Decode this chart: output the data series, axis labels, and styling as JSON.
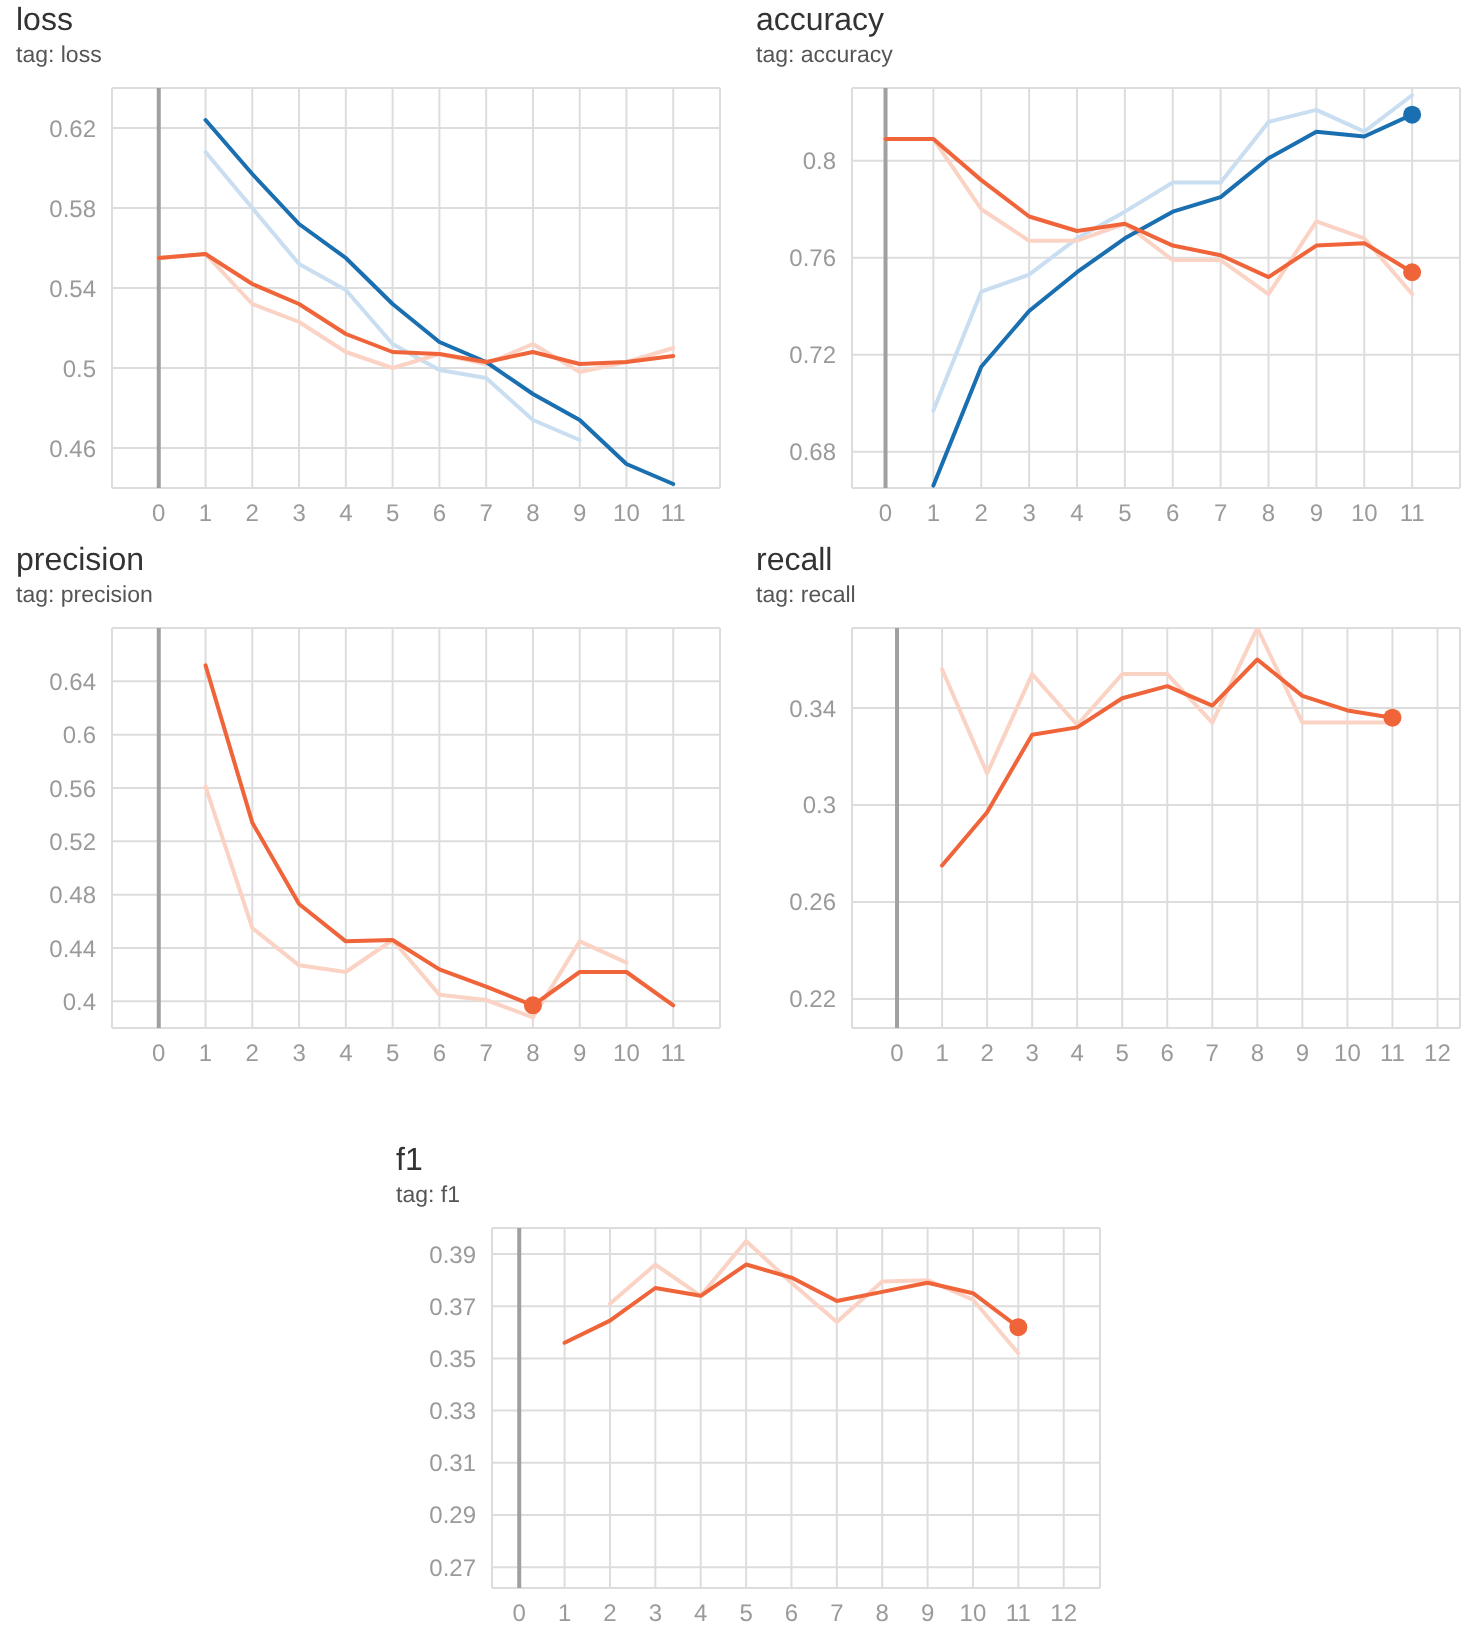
{
  "chart_data": [
    {
      "type": "line",
      "title": "loss",
      "subtitle": "tag: loss",
      "x": [
        0,
        1,
        2,
        3,
        4,
        5,
        6,
        7,
        8,
        9,
        10,
        11
      ],
      "xlim": [
        -1,
        12
      ],
      "xticks": [
        0,
        1,
        2,
        3,
        4,
        5,
        6,
        7,
        8,
        9,
        10,
        11
      ],
      "ylim": [
        0.44,
        0.64
      ],
      "yticks": [
        0.46,
        0.5,
        0.54,
        0.58,
        0.62
      ],
      "grid": true,
      "marker": "none",
      "ref_lines": [
        {
          "axis": "x",
          "value": 0,
          "color": "#a0a0a0"
        }
      ],
      "series": [
        {
          "color": "#c9def0",
          "values": [
            null,
            0.608,
            0.58,
            0.552,
            0.539,
            0.512,
            0.499,
            0.495,
            0.474,
            0.464,
            null,
            null
          ]
        },
        {
          "color": "#fbd3c5",
          "values": [
            0.555,
            0.557,
            0.532,
            0.523,
            0.508,
            0.5,
            0.507,
            0.502,
            0.512,
            0.498,
            0.503,
            0.51
          ]
        },
        {
          "color": "#1a6fb0",
          "values": [
            null,
            0.624,
            0.597,
            0.572,
            0.555,
            0.532,
            0.513,
            0.503,
            0.487,
            0.474,
            0.452,
            0.442
          ]
        },
        {
          "color": "#f0643a",
          "values": [
            0.555,
            0.557,
            0.542,
            0.532,
            0.517,
            0.508,
            0.507,
            0.503,
            0.508,
            0.502,
            0.503,
            0.506
          ]
        }
      ]
    },
    {
      "type": "line",
      "title": "accuracy",
      "subtitle": "tag: accuracy",
      "x": [
        0,
        1,
        2,
        3,
        4,
        5,
        6,
        7,
        8,
        9,
        10,
        11
      ],
      "xlim": [
        -0.7,
        12
      ],
      "xticks": [
        0,
        1,
        2,
        3,
        4,
        5,
        6,
        7,
        8,
        9,
        10,
        11
      ],
      "ylim": [
        0.665,
        0.83
      ],
      "yticks": [
        0.68,
        0.72,
        0.76,
        0.8
      ],
      "grid": true,
      "marker": "none",
      "ref_lines": [
        {
          "axis": "x",
          "value": 0,
          "color": "#a0a0a0"
        }
      ],
      "series": [
        {
          "color": "#c9def0",
          "values": [
            null,
            0.697,
            0.746,
            0.753,
            0.768,
            0.779,
            0.791,
            0.791,
            0.816,
            0.821,
            0.812,
            0.827
          ]
        },
        {
          "color": "#fbd3c5",
          "values": [
            0.809,
            0.809,
            0.78,
            0.767,
            0.767,
            0.774,
            0.759,
            0.759,
            0.745,
            0.775,
            0.768,
            0.745
          ]
        },
        {
          "color": "#1a6fb0",
          "values": [
            null,
            0.666,
            0.715,
            0.738,
            0.754,
            0.768,
            0.779,
            0.785,
            0.801,
            0.812,
            0.81,
            0.819
          ]
        },
        {
          "color": "#f0643a",
          "values": [
            0.809,
            0.809,
            0.792,
            0.777,
            0.771,
            0.774,
            0.765,
            0.761,
            0.752,
            0.765,
            0.766,
            0.754
          ]
        },
        {
          "type": "scatter",
          "marker": "circle",
          "color": "#1a6fb0",
          "values": [
            null,
            null,
            null,
            null,
            null,
            null,
            null,
            null,
            null,
            null,
            null,
            0.819
          ]
        },
        {
          "type": "scatter",
          "marker": "circle",
          "color": "#f0643a",
          "values": [
            null,
            null,
            null,
            null,
            null,
            null,
            null,
            null,
            null,
            null,
            null,
            0.754
          ]
        }
      ]
    },
    {
      "type": "line",
      "title": "precision",
      "subtitle": "tag: precision",
      "x": [
        1,
        2,
        3,
        4,
        5,
        6,
        7,
        8,
        9,
        10,
        11
      ],
      "xlim": [
        -1,
        12
      ],
      "xticks": [
        0,
        1,
        2,
        3,
        4,
        5,
        6,
        7,
        8,
        9,
        10,
        11
      ],
      "ylim": [
        0.38,
        0.68
      ],
      "yticks": [
        0.4,
        0.44,
        0.48,
        0.52,
        0.56,
        0.6,
        0.64
      ],
      "grid": true,
      "marker": "none",
      "ref_lines": [
        {
          "axis": "x",
          "value": 0,
          "color": "#a0a0a0"
        }
      ],
      "series": [
        {
          "color": "#fbd3c5",
          "values": [
            0.561,
            0.455,
            0.427,
            0.422,
            0.446,
            0.405,
            0.401,
            0.388,
            0.445,
            0.429,
            null
          ]
        },
        {
          "color": "#f0643a",
          "values": [
            0.652,
            0.534,
            0.473,
            0.445,
            0.446,
            0.424,
            0.411,
            0.397,
            0.422,
            0.422,
            0.397
          ]
        },
        {
          "type": "scatter",
          "marker": "circle",
          "color": "#f0643a",
          "values": [
            null,
            null,
            null,
            null,
            null,
            null,
            null,
            0.397,
            null,
            null,
            null
          ]
        }
      ]
    },
    {
      "type": "line",
      "title": "recall",
      "subtitle": "tag: recall",
      "x": [
        1,
        2,
        3,
        4,
        5,
        6,
        7,
        8,
        9,
        10,
        11
      ],
      "xlim": [
        -1,
        12.5
      ],
      "xticks": [
        0,
        1,
        2,
        3,
        4,
        5,
        6,
        7,
        8,
        9,
        10,
        11,
        12
      ],
      "ylim": [
        0.208,
        0.373
      ],
      "yticks": [
        0.22,
        0.26,
        0.3,
        0.34
      ],
      "grid": true,
      "marker": "none",
      "ref_lines": [
        {
          "axis": "x",
          "value": 0,
          "color": "#a0a0a0"
        }
      ],
      "series": [
        {
          "color": "#fbd3c5",
          "values": [
            0.356,
            0.313,
            0.354,
            0.333,
            0.354,
            0.354,
            0.334,
            0.373,
            0.334,
            0.334,
            0.334
          ]
        },
        {
          "color": "#f0643a",
          "values": [
            0.275,
            0.297,
            0.329,
            0.332,
            0.344,
            0.349,
            0.341,
            0.36,
            0.345,
            0.339,
            0.336
          ]
        },
        {
          "type": "scatter",
          "marker": "circle",
          "color": "#f0643a",
          "values": [
            null,
            null,
            null,
            null,
            null,
            null,
            null,
            null,
            null,
            null,
            0.336
          ]
        }
      ]
    },
    {
      "type": "line",
      "title": "f1",
      "subtitle": "tag: f1",
      "x": [
        1,
        2,
        3,
        4,
        5,
        6,
        7,
        8,
        9,
        10,
        11
      ],
      "xlim": [
        -0.6,
        12.8
      ],
      "xticks": [
        0,
        1,
        2,
        3,
        4,
        5,
        6,
        7,
        8,
        9,
        10,
        11,
        12
      ],
      "ylim": [
        0.262,
        0.4
      ],
      "yticks": [
        0.27,
        0.29,
        0.31,
        0.33,
        0.35,
        0.37,
        0.39
      ],
      "grid": true,
      "marker": "none",
      "ref_lines": [
        {
          "axis": "x",
          "value": 0,
          "color": "#a0a0a0"
        }
      ],
      "series": [
        {
          "color": "#fbd3c5",
          "values": [
            null,
            0.371,
            0.386,
            0.374,
            0.395,
            0.379,
            0.364,
            0.3795,
            0.38,
            0.3725,
            0.352
          ]
        },
        {
          "color": "#f0643a",
          "values": [
            0.356,
            0.3645,
            0.377,
            0.374,
            0.386,
            0.381,
            0.372,
            0.3755,
            0.379,
            0.375,
            0.362
          ]
        },
        {
          "type": "scatter",
          "marker": "circle",
          "color": "#f0643a",
          "values": [
            null,
            null,
            null,
            null,
            null,
            null,
            null,
            null,
            null,
            null,
            0.362
          ]
        }
      ]
    }
  ]
}
